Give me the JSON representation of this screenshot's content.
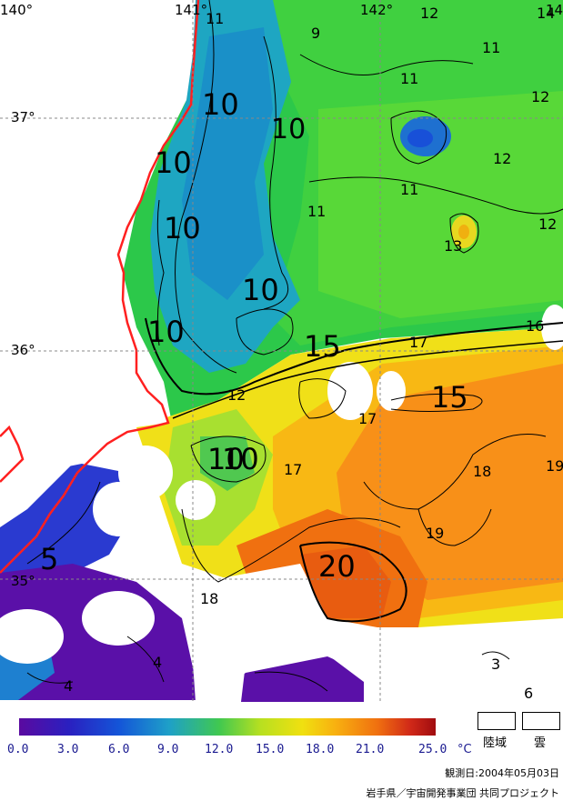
{
  "map": {
    "lon_labels": [
      "140°",
      "141°",
      "142°",
      "14"
    ],
    "lat_labels": [
      "37°",
      "36°",
      "35°"
    ],
    "contour_labels": [
      "11",
      "9",
      "12",
      "11",
      "14",
      "10",
      "11",
      "12",
      "10",
      "12",
      "10",
      "10",
      "11",
      "11",
      "12",
      "13",
      "10",
      "10",
      "16",
      "10",
      "15",
      "17",
      "12",
      "15",
      "17",
      "10",
      "17",
      "18",
      "19",
      "19",
      "5",
      "20",
      "18",
      "4",
      "4",
      "3",
      "6"
    ]
  },
  "legend": {
    "ticks": [
      "0.0",
      "3.0",
      "6.0",
      "9.0",
      "12.0",
      "15.0",
      "18.0",
      "21.0",
      "25.0"
    ],
    "unit": "°C",
    "land_label": "陸域",
    "cloud_label": "雲"
  },
  "footer": {
    "observation_date": "観測日:2004年05月03日",
    "credit": "岩手県／宇宙開発事業団 共同プロジェクト"
  }
}
